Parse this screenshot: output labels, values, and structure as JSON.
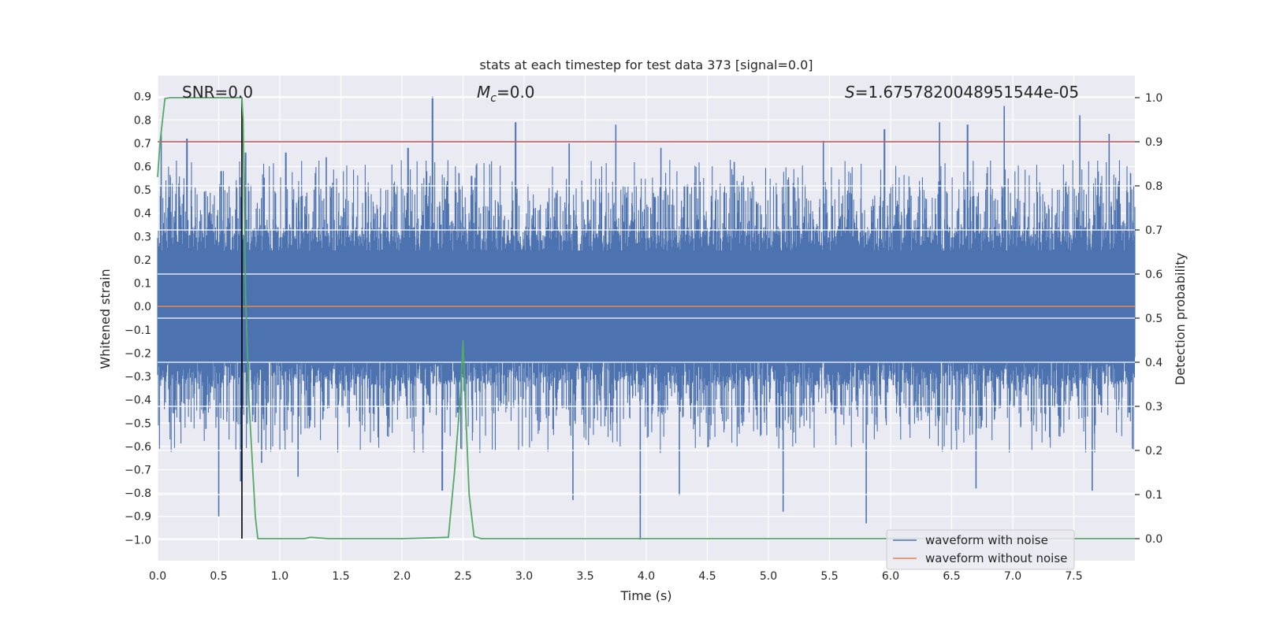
{
  "chart_data": {
    "type": "line",
    "title": "stats at each timestep for test data 373 [signal=0.0]",
    "xlabel": "Time (s)",
    "ylabel_left": "Whitened strain",
    "ylabel_right": "Detection probability",
    "xlim": [
      0.0,
      8.0
    ],
    "ylim_left": [
      -1.09,
      0.99
    ],
    "ylim_right": [
      -0.05,
      1.05
    ],
    "x_ticks": [
      0.0,
      0.5,
      1.0,
      1.5,
      2.0,
      2.5,
      3.0,
      3.5,
      4.0,
      4.5,
      5.0,
      5.5,
      6.0,
      6.5,
      7.0,
      7.5
    ],
    "x_tick_labels": [
      "0.0",
      "0.5",
      "1.0",
      "1.5",
      "2.0",
      "2.5",
      "3.0",
      "3.5",
      "4.0",
      "4.5",
      "5.0",
      "5.5",
      "6.0",
      "6.5",
      "7.0",
      "7.5"
    ],
    "y_left_ticks": [
      0.9,
      0.8,
      0.7,
      0.6,
      0.5,
      0.4,
      0.3,
      0.2,
      0.1,
      0.0,
      -0.1,
      -0.2,
      -0.3,
      -0.4,
      -0.5,
      -0.6,
      -0.7,
      -0.8,
      -0.9,
      -1.0
    ],
    "y_left_tick_labels": [
      "0.9",
      "0.8",
      "0.7",
      "0.6",
      "0.5",
      "0.4",
      "0.3",
      "0.2",
      "0.1",
      "0.0",
      "−0.1",
      "−0.2",
      "−0.3",
      "−0.4",
      "−0.5",
      "−0.6",
      "−0.7",
      "−0.8",
      "−0.9",
      "−1.0"
    ],
    "y_right_ticks": [
      1.0,
      0.9,
      0.8,
      0.7,
      0.6,
      0.5,
      0.4,
      0.3,
      0.2,
      0.1,
      0.0
    ],
    "y_right_tick_labels": [
      "1.0",
      "0.9",
      "0.8",
      "0.7",
      "0.6",
      "0.5",
      "0.4",
      "0.3",
      "0.2",
      "0.1",
      "0.0"
    ],
    "annotations": {
      "snr": "SNR=0.0",
      "mc_symbol": "M",
      "mc_sub": "c",
      "mc_value": "=0.0",
      "s_symbol": "S",
      "s_value": "=1.6757820048951544e-05"
    },
    "series": [
      {
        "name": "waveform with noise",
        "axis": "left",
        "color": "#4c72b0",
        "description": "noisy whitened strain, dense band roughly between -0.5 and 0.5 with spikes",
        "peaks": [
          {
            "x": 0.03,
            "y": 0.74
          },
          {
            "x": 0.24,
            "y": 0.72
          },
          {
            "x": 0.52,
            "y": 0.58
          },
          {
            "x": 0.72,
            "y": 0.66
          },
          {
            "x": 1.05,
            "y": 0.66
          },
          {
            "x": 1.38,
            "y": 0.64
          },
          {
            "x": 2.05,
            "y": 0.68
          },
          {
            "x": 2.25,
            "y": 0.9
          },
          {
            "x": 2.57,
            "y": 0.56
          },
          {
            "x": 2.93,
            "y": 0.79
          },
          {
            "x": 3.37,
            "y": 0.7
          },
          {
            "x": 3.75,
            "y": 0.78
          },
          {
            "x": 4.12,
            "y": 0.68
          },
          {
            "x": 4.72,
            "y": 0.62
          },
          {
            "x": 5.45,
            "y": 0.71
          },
          {
            "x": 5.95,
            "y": 0.76
          },
          {
            "x": 6.4,
            "y": 0.79
          },
          {
            "x": 6.63,
            "y": 0.78
          },
          {
            "x": 6.93,
            "y": 0.86
          },
          {
            "x": 7.55,
            "y": 0.82
          },
          {
            "x": 7.79,
            "y": 0.74
          }
        ],
        "troughs": [
          {
            "x": 0.5,
            "y": -0.9
          },
          {
            "x": 0.68,
            "y": -0.75
          },
          {
            "x": 0.85,
            "y": -0.67
          },
          {
            "x": 1.15,
            "y": -0.73
          },
          {
            "x": 2.33,
            "y": -0.79
          },
          {
            "x": 3.4,
            "y": -0.83
          },
          {
            "x": 3.95,
            "y": -1.0
          },
          {
            "x": 4.27,
            "y": -0.81
          },
          {
            "x": 5.12,
            "y": -0.88
          },
          {
            "x": 5.8,
            "y": -0.93
          },
          {
            "x": 6.7,
            "y": -0.78
          },
          {
            "x": 7.65,
            "y": -0.79
          }
        ]
      },
      {
        "name": "waveform without noise",
        "axis": "left",
        "color": "#dd8452",
        "x": [
          0.0,
          8.0
        ],
        "y": [
          0.0,
          0.0
        ]
      },
      {
        "name": "detection probability",
        "axis": "right",
        "color": "#55a868",
        "x": [
          0.0,
          0.02,
          0.06,
          0.1,
          0.2,
          0.4,
          0.6,
          0.69,
          0.7,
          0.72,
          0.75,
          0.8,
          0.82,
          1.0,
          1.2,
          1.25,
          1.4,
          1.6,
          2.0,
          2.38,
          2.43,
          2.48,
          2.5,
          2.52,
          2.55,
          2.59,
          2.65,
          3.0,
          5.0,
          8.0
        ],
        "y": [
          0.82,
          0.9,
          0.998,
          1.0,
          1.0,
          1.0,
          1.0,
          1.0,
          0.95,
          0.55,
          0.3,
          0.05,
          0.0,
          0.0,
          0.0,
          0.003,
          0.0,
          0.0,
          0.0,
          0.003,
          0.15,
          0.33,
          0.45,
          0.3,
          0.1,
          0.005,
          0.0,
          0.0,
          0.0,
          0.0
        ]
      }
    ],
    "reference_lines": [
      {
        "name": "threshold",
        "axis": "right",
        "orientation": "horizontal",
        "value": 0.9,
        "color": "#c44e52"
      },
      {
        "name": "marker",
        "axis": "right",
        "orientation": "vertical",
        "value": 0.69,
        "color": "#000000",
        "from": 0.0,
        "to": 1.0
      }
    ],
    "legend": {
      "position": "lower-right",
      "entries": [
        {
          "label": "waveform with noise",
          "color": "#4c72b0"
        },
        {
          "label": "waveform without noise",
          "color": "#dd8452"
        }
      ]
    },
    "colors": {
      "axes_bg": "#eaeaf2",
      "grid": "#ffffff",
      "text": "#262626"
    }
  }
}
